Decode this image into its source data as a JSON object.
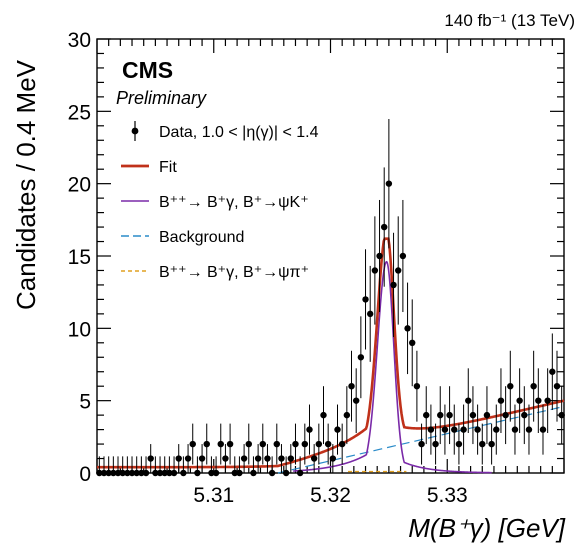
{
  "chart_data": {
    "type": "scatter",
    "lumi_label": "140 fb⁻¹ (13 TeV)",
    "experiment": "CMS",
    "status": "Preliminary",
    "xlabel": "M(B⁺γ) [GeV]",
    "ylabel": "Candidates / 0.4 MeV",
    "xlim": [
      5.3,
      5.34
    ],
    "ylim": [
      0,
      30
    ],
    "x_ticks": [
      "5.31",
      "5.32",
      "5.33"
    ],
    "y_ticks": [
      "0",
      "5",
      "10",
      "15",
      "20",
      "25",
      "30"
    ],
    "legend": [
      {
        "label": "Data, 1.0 < |η(γ)| < 1.4",
        "style": "points",
        "color": "#000000"
      },
      {
        "label": "Fit",
        "style": "line",
        "color": "#c0311a"
      },
      {
        "label": "B⁺⁺→ B⁺γ, B⁺→ψK⁺",
        "style": "line",
        "color": "#7a2aa8"
      },
      {
        "label": "Background",
        "style": "dashed",
        "color": "#2a8bc9"
      },
      {
        "label": "B⁺⁺→ B⁺γ, B⁺→ψπ⁺",
        "style": "dashed",
        "color": "#e0a020"
      }
    ],
    "data_points": {
      "x": [
        5.3002,
        5.3006,
        5.301,
        5.3014,
        5.3018,
        5.3022,
        5.3026,
        5.303,
        5.3034,
        5.3038,
        5.3042,
        5.3046,
        5.305,
        5.3054,
        5.3058,
        5.3062,
        5.3066,
        5.307,
        5.3074,
        5.3078,
        5.3082,
        5.3086,
        5.309,
        5.3094,
        5.3098,
        5.3102,
        5.3106,
        5.311,
        5.3114,
        5.3118,
        5.3122,
        5.3126,
        5.313,
        5.3134,
        5.3138,
        5.3142,
        5.3146,
        5.315,
        5.3154,
        5.3158,
        5.3162,
        5.3166,
        5.317,
        5.3174,
        5.3178,
        5.3182,
        5.3186,
        5.319,
        5.3194,
        5.3198,
        5.3202,
        5.3206,
        5.321,
        5.3214,
        5.3218,
        5.3222,
        5.3226,
        5.323,
        5.3234,
        5.3238,
        5.3242,
        5.3246,
        5.325,
        5.3254,
        5.3258,
        5.3262,
        5.3266,
        5.327,
        5.3274,
        5.3278,
        5.3282,
        5.3286,
        5.329,
        5.3294,
        5.3298,
        5.3302,
        5.3306,
        5.331,
        5.3314,
        5.3318,
        5.3322,
        5.3326,
        5.333,
        5.3334,
        5.3338,
        5.3342,
        5.3346,
        5.335,
        5.3354,
        5.3358,
        5.3362,
        5.3366,
        5.337,
        5.3374,
        5.3378,
        5.3382,
        5.3386,
        5.339,
        5.3394,
        5.3398
      ],
      "y": [
        0,
        0,
        0,
        0,
        0,
        0,
        0,
        0,
        0,
        0,
        0,
        1,
        0,
        0,
        0,
        0,
        0,
        1,
        0,
        1,
        2,
        0,
        1,
        2,
        0,
        0,
        2,
        1,
        2,
        0,
        0,
        1,
        2,
        0,
        1,
        2,
        1,
        0,
        2,
        1,
        0,
        1,
        2,
        0,
        2,
        3,
        1,
        2,
        4,
        2,
        1,
        3,
        2,
        4,
        6,
        5,
        8,
        12,
        11,
        14,
        15,
        17,
        20,
        13,
        14,
        15,
        10,
        9,
        6,
        2,
        4,
        3,
        2,
        4,
        3,
        4,
        3,
        2,
        3,
        5,
        4,
        3,
        2,
        4,
        2,
        3,
        5,
        4,
        6,
        3,
        5,
        4,
        3,
        6,
        5,
        3,
        5,
        7,
        6,
        4
      ]
    },
    "fit_curve_summary": {
      "peak_x": 5.3248,
      "peak_y": 16.2
    },
    "signal_curve_summary": {
      "peak_x": 5.3248,
      "peak_y": 14.6
    },
    "background_line": {
      "x": [
        5.3155,
        5.34
      ],
      "y": [
        0.0,
        4.6
      ]
    }
  }
}
